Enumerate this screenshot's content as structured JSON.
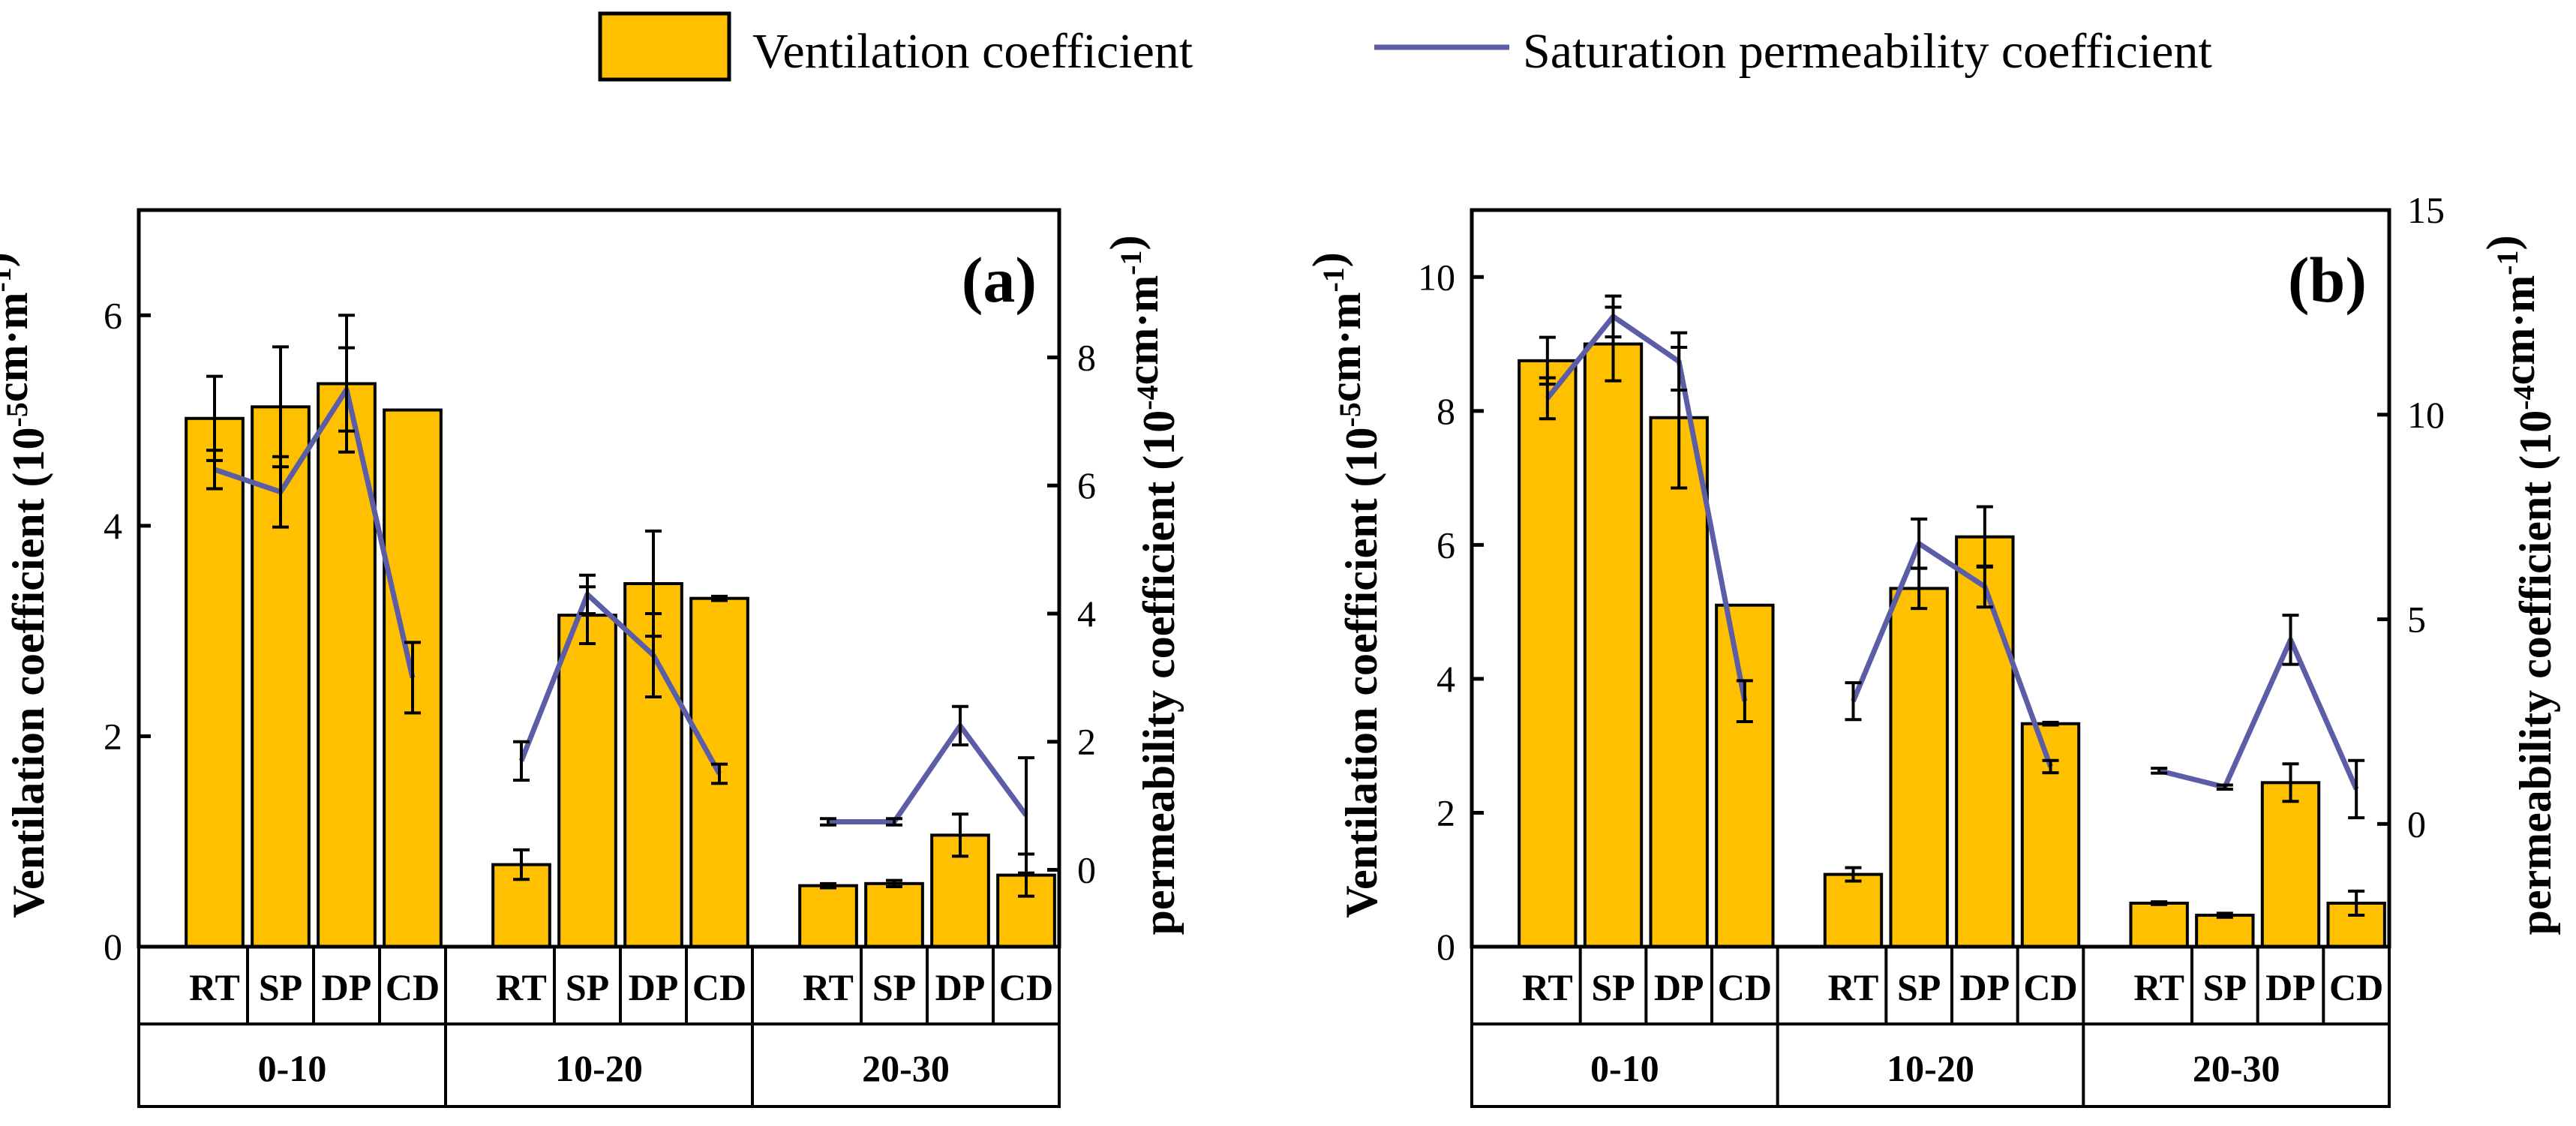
{
  "legend": {
    "bar_label": "Ventilation coefficient",
    "line_label": "Saturation permeability coefficient"
  },
  "colors": {
    "bar": "#FFC000",
    "line": "#5B5EA6",
    "axis": "#000000"
  },
  "chart_data": [
    {
      "type": "bar+line",
      "panel_label": "(a)",
      "left_axis_label": {
        "main": "Ventilation coefficient (10",
        "sup": "-5",
        "tail": "cm·m",
        "sup2": "-1",
        "end": ")"
      },
      "right_axis_label": {
        "main": "permeability coefficient (10",
        "sup": "-4",
        "tail": "cm·m",
        "sup2": "-1",
        "end": ")"
      },
      "left_ylim": [
        0,
        7
      ],
      "left_ticks": [
        0,
        2,
        4,
        6
      ],
      "right_ylim": [
        -1.2,
        10.3
      ],
      "right_ticks": [
        0,
        2,
        4,
        6,
        8
      ],
      "groups": [
        "0-10",
        "10-20",
        "20-30"
      ],
      "categories": [
        "RT",
        "SP",
        "DP",
        "CD"
      ],
      "ventilation": [
        {
          "values": [
            5.02,
            5.13,
            5.35,
            5.1
          ],
          "errors": [
            0.4,
            0.57,
            0.65,
            0
          ]
        },
        {
          "values": [
            0.78,
            3.15,
            3.45,
            3.31
          ],
          "errors": [
            0.14,
            0.27,
            0.5,
            0.02
          ]
        },
        {
          "values": [
            0.58,
            0.6,
            1.06,
            0.68
          ],
          "errors": [
            0.02,
            0.03,
            0.2,
            0.2
          ]
        }
      ],
      "permeability": [
        {
          "values": [
            6.25,
            5.9,
            7.5,
            3.0
          ],
          "errors": [
            0.3,
            0.55,
            0.65,
            0.55
          ]
        },
        {
          "values": [
            1.7,
            4.3,
            3.35,
            1.5
          ],
          "errors": [
            0.3,
            0.3,
            0.65,
            0.15
          ]
        },
        {
          "values": [
            0.75,
            0.75,
            2.25,
            0.85
          ],
          "errors": [
            0.05,
            0.05,
            0.3,
            0.9
          ]
        }
      ]
    },
    {
      "type": "bar+line",
      "panel_label": "(b)",
      "left_axis_label": {
        "main": "Ventilation coefficient (10",
        "sup": "-5",
        "tail": "cm·m",
        "sup2": "-1",
        "end": ")"
      },
      "right_axis_label": {
        "main": "permeability coefficient (10",
        "sup": "-4",
        "tail": "cm·m",
        "sup2": "-1",
        "end": ")"
      },
      "left_ylim": [
        0,
        11
      ],
      "left_ticks": [
        0,
        2,
        4,
        6,
        8,
        10
      ],
      "right_ylim": [
        -3,
        15
      ],
      "right_ticks": [
        0,
        5,
        10,
        15
      ],
      "groups": [
        "0-10",
        "10-20",
        "20-30"
      ],
      "categories": [
        "RT",
        "SP",
        "DP",
        "CD"
      ],
      "ventilation": [
        {
          "values": [
            8.75,
            9.0,
            7.9,
            5.1
          ],
          "errors": [
            0.35,
            0.55,
            1.05,
            0
          ]
        },
        {
          "values": [
            1.08,
            5.35,
            6.12,
            3.33
          ],
          "errors": [
            0.1,
            0.3,
            0.45,
            0.02
          ]
        },
        {
          "values": [
            0.65,
            0.47,
            2.45,
            0.65
          ],
          "errors": [
            0.02,
            0.03,
            0.28,
            0.18
          ]
        }
      ],
      "permeability": [
        {
          "values": [
            10.4,
            12.4,
            11.3,
            3.0
          ],
          "errors": [
            0.5,
            0.5,
            0.7,
            0.5
          ]
        },
        {
          "values": [
            3.0,
            6.85,
            5.8,
            1.4
          ],
          "errors": [
            0.45,
            0.6,
            0.5,
            0.15
          ]
        },
        {
          "values": [
            1.3,
            0.9,
            4.5,
            0.85
          ],
          "errors": [
            0.06,
            0.05,
            0.6,
            0.7
          ]
        }
      ]
    }
  ]
}
